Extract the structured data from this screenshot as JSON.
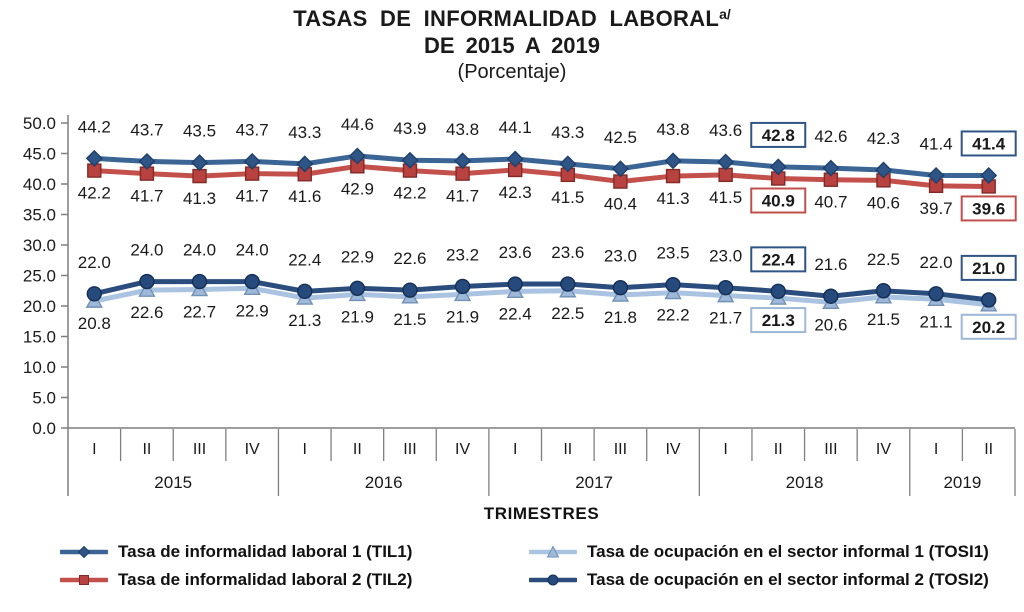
{
  "title": {
    "line1": "TASAS DE INFORMALIDAD  LABORAL",
    "superscript": "a/",
    "line2": "DE 2015  A 2019",
    "line3": "(Porcentaje)"
  },
  "colors": {
    "axis": "#7f7f7f",
    "text": "#1a1a1a"
  },
  "chart_data": {
    "type": "line",
    "title": "TASAS DE INFORMALIDAD LABORAL a/ DE 2015 A 2019 (Porcentaje)",
    "xlabel": "TRIMESTRES",
    "ylabel": "",
    "ylim": [
      0,
      50
    ],
    "ytick_step": 5,
    "ytick_labels": [
      "0.0",
      "5.0",
      "10.0",
      "15.0",
      "20.0",
      "25.0",
      "30.0",
      "35.0",
      "40.0",
      "45.0",
      "50.0"
    ],
    "grid": false,
    "legend_position": "bottom",
    "x_axis": {
      "quarters": [
        "I",
        "II",
        "III",
        "IV",
        "I",
        "II",
        "III",
        "IV",
        "I",
        "II",
        "III",
        "IV",
        "I",
        "II",
        "III",
        "IV",
        "I",
        "II"
      ],
      "years": [
        {
          "label": "2015",
          "quarters": 4
        },
        {
          "label": "2016",
          "quarters": 4
        },
        {
          "label": "2017",
          "quarters": 4
        },
        {
          "label": "2018",
          "quarters": 4
        },
        {
          "label": "2019",
          "quarters": 2
        }
      ]
    },
    "highlighted_indices": [
      13,
      17
    ],
    "series": [
      {
        "id": "TIL1",
        "name": "Tasa de informalidad laboral 1 (TIL1)",
        "color": "#3A6595",
        "marker": "diamond",
        "marker_color": "#2E5586",
        "marker_stroke": "#203F6B",
        "box_color": "#2E5586",
        "label_position": "above",
        "values": [
          44.2,
          43.7,
          43.5,
          43.7,
          43.3,
          44.6,
          43.9,
          43.8,
          44.1,
          43.3,
          42.5,
          43.8,
          43.6,
          42.8,
          42.6,
          42.3,
          41.4,
          41.4
        ]
      },
      {
        "id": "TIL2",
        "name": "Tasa de informalidad laboral 2 (TIL2)",
        "color": "#C4504C",
        "marker": "square",
        "marker_color": "#B8423F",
        "marker_stroke": "#832A27",
        "box_color": "#C0504D",
        "label_position": "below",
        "values": [
          42.2,
          41.7,
          41.3,
          41.7,
          41.6,
          42.9,
          42.2,
          41.7,
          42.3,
          41.5,
          40.4,
          41.3,
          41.5,
          40.9,
          40.7,
          40.6,
          39.7,
          39.6
        ]
      },
      {
        "id": "TOSI1",
        "name": "Tasa de ocupación en el sector informal 1 (TOSI1)",
        "color": "#A9C3E1",
        "marker": "triangle",
        "marker_color": "#9DB8D9",
        "marker_stroke": "#7291B5",
        "box_color": "#9DB8D9",
        "label_position": "below",
        "values": [
          20.8,
          22.6,
          22.7,
          22.9,
          21.3,
          21.9,
          21.5,
          21.9,
          22.4,
          22.5,
          21.8,
          22.2,
          21.7,
          21.3,
          20.6,
          21.5,
          21.1,
          20.2
        ]
      },
      {
        "id": "TOSI2",
        "name": "Tasa de ocupación en el sector informal 2 (TOSI2)",
        "color": "#2B4D7E",
        "marker": "circle",
        "marker_color": "#274A7C",
        "marker_stroke": "#152F55",
        "box_color": "#2E5586",
        "label_position": "above",
        "values": [
          22.0,
          24.0,
          24.0,
          24.0,
          22.4,
          22.9,
          22.6,
          23.2,
          23.6,
          23.6,
          23.0,
          23.5,
          23.0,
          22.4,
          21.6,
          22.5,
          22.0,
          21.0
        ]
      }
    ]
  }
}
